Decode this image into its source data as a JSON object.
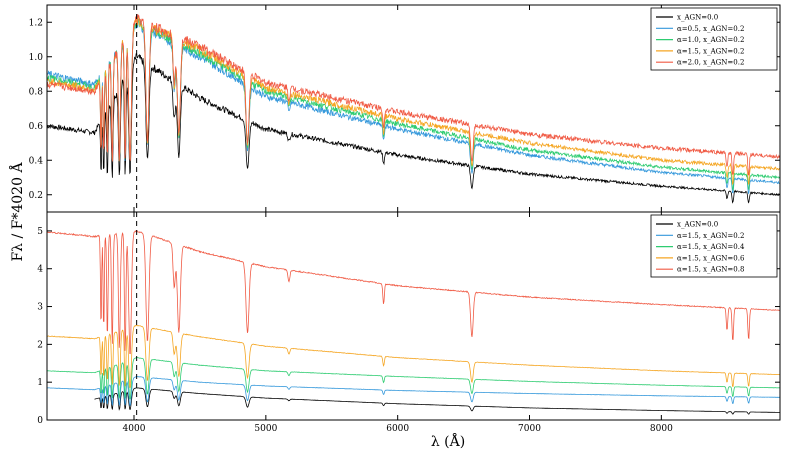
{
  "chart_data": [
    {
      "type": "line",
      "panel": "top",
      "xlim": [
        3340,
        8900
      ],
      "ylim": [
        0.1,
        1.3
      ],
      "x_ticks": [
        4000,
        5000,
        6000,
        7000,
        8000
      ],
      "y_ticks": [
        0.2,
        0.4,
        0.6,
        0.8,
        1.0,
        1.2
      ],
      "y_tick_labels": [
        "0.2",
        "0.4",
        "0.6",
        "0.8",
        "1.0",
        "1.2"
      ],
      "vline_x": 4020,
      "legend_position": "upper-right",
      "legend": [
        {
          "label": "x_AGN=0.0",
          "color": "#000000"
        },
        {
          "label": "α=0.5,  x_AGN=0.2",
          "color": "#3498db"
        },
        {
          "label": "α=1.0,  x_AGN=0.2",
          "color": "#2ecc71"
        },
        {
          "label": "α=1.5,  x_AGN=0.2",
          "color": "#f5a623"
        },
        {
          "label": "α=2.0,  x_AGN=0.2",
          "color": "#f05a44"
        }
      ],
      "series": [
        {
          "name": "x_AGN=0.0",
          "color": "#000000",
          "x": [
            3340,
            3700,
            4020,
            4500,
            5000,
            6000,
            7000,
            8000,
            8900
          ],
          "y": [
            0.6,
            0.56,
            1.0,
            0.76,
            0.58,
            0.43,
            0.32,
            0.25,
            0.2
          ]
        },
        {
          "name": "α=0.5,  x_AGN=0.2",
          "color": "#3498db",
          "x": [
            3340,
            3700,
            4020,
            4500,
            5000,
            6000,
            7000,
            8000,
            8900
          ],
          "y": [
            0.9,
            0.84,
            1.19,
            1.0,
            0.77,
            0.58,
            0.43,
            0.33,
            0.27
          ]
        },
        {
          "name": "α=1.0,  x_AGN=0.2",
          "color": "#2ecc71",
          "x": [
            3340,
            3700,
            4020,
            4500,
            5000,
            6000,
            7000,
            8000,
            8900
          ],
          "y": [
            0.88,
            0.82,
            1.2,
            1.02,
            0.8,
            0.61,
            0.46,
            0.36,
            0.3
          ]
        },
        {
          "name": "α=1.5,  x_AGN=0.2",
          "color": "#f5a623",
          "x": [
            3340,
            3700,
            4020,
            4500,
            5000,
            6000,
            7000,
            8000,
            8900
          ],
          "y": [
            0.86,
            0.81,
            1.21,
            1.04,
            0.82,
            0.64,
            0.5,
            0.4,
            0.35
          ]
        },
        {
          "name": "α=2.0,  x_AGN=0.2",
          "color": "#f05a44",
          "x": [
            3340,
            3700,
            4020,
            4500,
            5000,
            6000,
            7000,
            8000,
            8900
          ],
          "y": [
            0.84,
            0.8,
            1.22,
            1.06,
            0.85,
            0.68,
            0.55,
            0.47,
            0.42
          ]
        }
      ]
    },
    {
      "type": "line",
      "panel": "bottom",
      "xlim": [
        3340,
        8900
      ],
      "ylim": [
        0,
        5.5
      ],
      "x_ticks": [
        4000,
        5000,
        6000,
        7000,
        8000
      ],
      "x_tick_labels": [
        "4000",
        "5000",
        "6000",
        "7000",
        "8000"
      ],
      "y_ticks": [
        0,
        1,
        2,
        3,
        4,
        5
      ],
      "y_tick_labels": [
        "0",
        "1",
        "2",
        "3",
        "4",
        "5"
      ],
      "vline_x": 4020,
      "legend_position": "upper-right",
      "legend": [
        {
          "label": "x_AGN=0.0",
          "color": "#000000"
        },
        {
          "label": "α=1.5,  x_AGN=0.2",
          "color": "#3498db"
        },
        {
          "label": "α=1.5,  x_AGN=0.4",
          "color": "#2ecc71"
        },
        {
          "label": "α=1.5,  x_AGN=0.6",
          "color": "#f5a623"
        },
        {
          "label": "α=1.5,  x_AGN=0.8",
          "color": "#f05a44"
        }
      ],
      "series": [
        {
          "name": "x_AGN=0.0",
          "color": "#000000",
          "x": [
            3700,
            4020,
            4500,
            5000,
            6000,
            7000,
            8000,
            8900
          ],
          "y": [
            0.55,
            0.85,
            0.7,
            0.58,
            0.43,
            0.32,
            0.25,
            0.2
          ]
        },
        {
          "name": "α=1.5,  x_AGN=0.2",
          "color": "#3498db",
          "x": [
            3340,
            3700,
            4020,
            4500,
            5000,
            6000,
            7000,
            8000,
            8900
          ],
          "y": [
            0.85,
            0.8,
            1.15,
            1.0,
            0.9,
            0.78,
            0.7,
            0.64,
            0.6
          ]
        },
        {
          "name": "α=1.5,  x_AGN=0.4",
          "color": "#2ecc71",
          "x": [
            3340,
            3700,
            4020,
            4500,
            5000,
            6000,
            7000,
            8000,
            8900
          ],
          "y": [
            1.3,
            1.25,
            1.65,
            1.45,
            1.3,
            1.15,
            1.02,
            0.92,
            0.85
          ]
        },
        {
          "name": "α=1.5,  x_AGN=0.6",
          "color": "#f5a623",
          "x": [
            3340,
            3700,
            4020,
            4500,
            5000,
            6000,
            7000,
            8000,
            8900
          ],
          "y": [
            2.22,
            2.15,
            2.5,
            2.2,
            1.95,
            1.65,
            1.45,
            1.3,
            1.2
          ]
        },
        {
          "name": "α=1.5,  x_AGN=0.8",
          "color": "#f05a44",
          "x": [
            3340,
            3700,
            4020,
            4500,
            5000,
            6000,
            7000,
            8000,
            8900
          ],
          "y": [
            4.97,
            4.85,
            5.0,
            4.45,
            4.05,
            3.55,
            3.25,
            3.05,
            2.9
          ]
        }
      ]
    }
  ],
  "labels": {
    "xlabel": "λ (Å)",
    "ylabel": "Fλ / F*4020 Å"
  }
}
